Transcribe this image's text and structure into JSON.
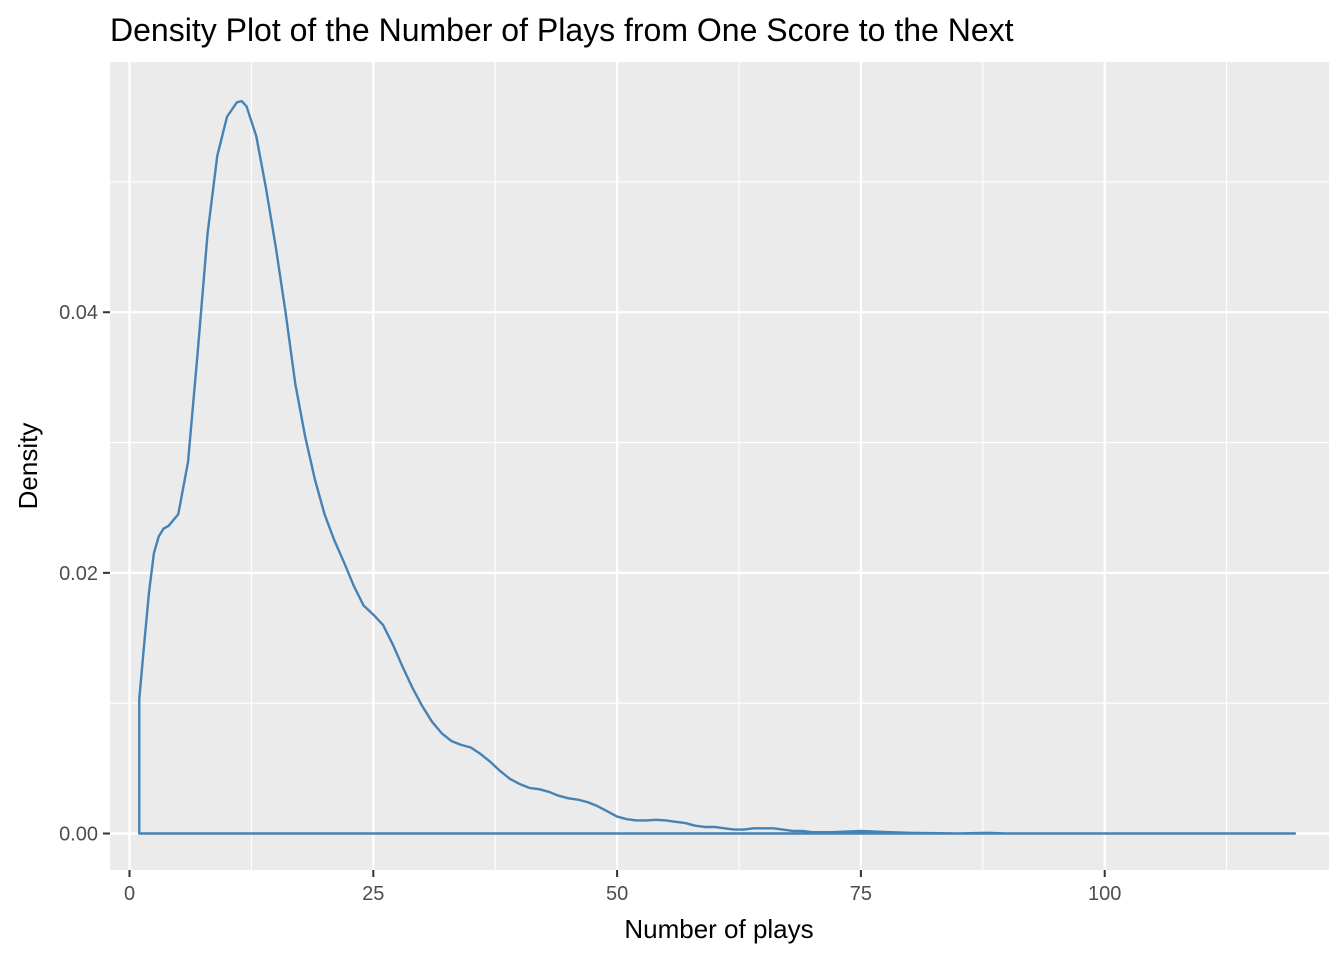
{
  "chart_data": {
    "type": "area",
    "title": "Density Plot of the Number of Plays from One Score to the Next",
    "xlabel": "Number of plays",
    "ylabel": "Density",
    "xlim": [
      -2,
      123
    ],
    "ylim": [
      -0.0028,
      0.0592
    ],
    "x_major_ticks": [
      0,
      25,
      50,
      75,
      100
    ],
    "x_tick_labels": [
      "0",
      "25",
      "50",
      "75",
      "100"
    ],
    "x_minor_ticks": [
      12.5,
      37.5,
      62.5,
      87.5,
      112.5
    ],
    "y_major_ticks": [
      0,
      0.02,
      0.04
    ],
    "y_tick_labels": [
      "0.00",
      "0.02",
      "0.04"
    ],
    "y_minor_ticks": [
      0.01,
      0.03,
      0.05
    ],
    "grid": true,
    "legend": "none",
    "colors": {
      "line": "#4682b4",
      "panel": "#ebebeb",
      "grid": "#ffffff",
      "tick": "#333333"
    },
    "series": [
      {
        "x": [
          1,
          1,
          1.5,
          2,
          2.5,
          3,
          3.5,
          4,
          5,
          6,
          7,
          8,
          9,
          10,
          11,
          11.5,
          12,
          13,
          14,
          15,
          16,
          17,
          18,
          19,
          20,
          21,
          22,
          23,
          24,
          25,
          26,
          27,
          28,
          29,
          30,
          31,
          32,
          33,
          34,
          35,
          36,
          37,
          38,
          39,
          40,
          41,
          42,
          43,
          44,
          45,
          46,
          47,
          48,
          49,
          50,
          51,
          52,
          53,
          54,
          55,
          56,
          57,
          58,
          59,
          60,
          61,
          62,
          63,
          64,
          65,
          66,
          67,
          68,
          69,
          70,
          72,
          75,
          78,
          80,
          85,
          88,
          90,
          95,
          100,
          105,
          110,
          115,
          119.5
        ],
        "y": [
          0,
          0.0103,
          0.0145,
          0.0185,
          0.0215,
          0.0228,
          0.0234,
          0.0236,
          0.0245,
          0.0285,
          0.037,
          0.046,
          0.052,
          0.055,
          0.0561,
          0.0562,
          0.0558,
          0.0535,
          0.0495,
          0.045,
          0.04,
          0.0345,
          0.0305,
          0.0272,
          0.0245,
          0.0225,
          0.0208,
          0.019,
          0.0175,
          0.0168,
          0.016,
          0.0145,
          0.0128,
          0.0112,
          0.0098,
          0.0086,
          0.0077,
          0.0071,
          0.0068,
          0.0066,
          0.0061,
          0.0055,
          0.0048,
          0.0042,
          0.0038,
          0.0035,
          0.0034,
          0.0032,
          0.0029,
          0.0027,
          0.0026,
          0.0024,
          0.0021,
          0.0017,
          0.0013,
          0.0011,
          0.001,
          0.001,
          0.00105,
          0.001,
          0.0009,
          0.0008,
          0.0006,
          0.0005,
          0.0005,
          0.0004,
          0.0003,
          0.0003,
          0.0004,
          0.0004,
          0.0004,
          0.0003,
          0.0002,
          0.0002,
          0.0001,
          0.0001,
          0.0002,
          0.0001,
          5e-05,
          0.0,
          5e-05,
          0.0,
          0.0,
          0.0,
          0.0,
          0.0,
          0.0,
          0.0
        ]
      }
    ]
  }
}
